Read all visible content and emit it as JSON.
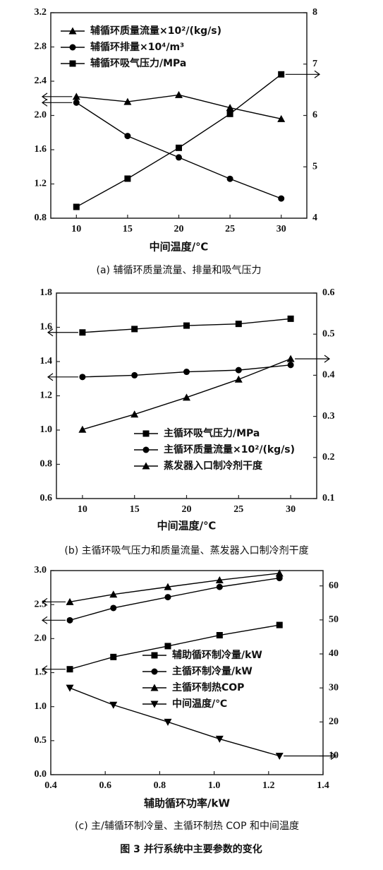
{
  "chart_data": [
    {
      "type": "line",
      "caption": "(a) 辅循环质量流量、排量和吸气压力",
      "xlabel": "中间温度/℃",
      "x": [
        10,
        15,
        20,
        25,
        30
      ],
      "xlim": [
        7.5,
        32.5
      ],
      "xticks": [
        10,
        15,
        20,
        25,
        30
      ],
      "ylim": [
        0.8,
        3.2
      ],
      "yticks": [
        0.8,
        1.2,
        1.6,
        {
          "value": 2,
          "label": "2.0"
        },
        2.4,
        2.8,
        3.2
      ],
      "y2lim": [
        4,
        8
      ],
      "y2ticks": [
        4,
        5,
        6,
        7,
        8
      ],
      "legend": "top-left",
      "series": [
        {
          "name": "辅循环质量流量×10²/(kg/s)",
          "color": "#000000",
          "marker": "triangle",
          "axis": "y",
          "values": [
            2.22,
            2.16,
            2.24,
            2.09,
            1.96
          ]
        },
        {
          "name": "辅循环排量×10⁴/m³",
          "color": "#000000",
          "marker": "circle",
          "axis": "y",
          "values": [
            2.15,
            1.76,
            1.51,
            1.26,
            1.03
          ]
        },
        {
          "name": "辅循环吸气压力/MPa",
          "color": "#000000",
          "marker": "square",
          "axis": "y2",
          "values": [
            4.22,
            4.77,
            5.37,
            6.03,
            6.8
          ]
        }
      ]
    },
    {
      "type": "line",
      "caption": "(b) 主循环吸气压力和质量流量、蒸发器入口制冷剂干度",
      "xlabel": "中间温度/℃",
      "x": [
        10,
        15,
        20,
        25,
        30
      ],
      "xlim": [
        7.5,
        32.5
      ],
      "xticks": [
        10,
        15,
        20,
        25,
        30
      ],
      "ylim": [
        0.6,
        1.8
      ],
      "yticks": [
        0.6,
        0.8,
        {
          "value": 1,
          "label": "1.0"
        },
        1.2,
        1.4,
        1.6,
        1.8
      ],
      "y2lim": [
        0.1,
        0.6
      ],
      "y2ticks": [
        0.1,
        0.2,
        0.3,
        0.4,
        0.5,
        0.6
      ],
      "legend": "bottom-right",
      "series": [
        {
          "name": "主循环吸气压力/MPa",
          "color": "#000000",
          "marker": "square",
          "axis": "y",
          "values": [
            1.57,
            1.59,
            1.61,
            1.62,
            1.65
          ]
        },
        {
          "name": "主循环质量流量×10²/(kg/s)",
          "color": "#000000",
          "marker": "circle",
          "axis": "y",
          "values": [
            1.31,
            1.32,
            1.34,
            1.35,
            1.38
          ]
        },
        {
          "name": "蒸发器入口制冷剂干度",
          "color": "#000000",
          "marker": "triangle",
          "axis": "y2",
          "values": [
            0.268,
            0.305,
            0.346,
            0.39,
            0.44
          ]
        }
      ]
    },
    {
      "type": "line",
      "caption": "(c) 主/辅循环制冷量、主循环制热 COP 和中间温度",
      "xlabel": "辅助循环功率/kW",
      "x": [
        0.47,
        0.63,
        0.83,
        1.02,
        1.24
      ],
      "xlim": [
        0.4,
        1.4
      ],
      "xticks": [
        0.4,
        0.6,
        0.8,
        {
          "value": 1,
          "label": "1.0"
        },
        1.2,
        1.4
      ],
      "ylim": [
        0,
        3
      ],
      "yticks": [
        {
          "value": 0,
          "label": "0.0"
        },
        0.5,
        {
          "value": 1,
          "label": "1.0"
        },
        1.5,
        {
          "value": 2,
          "label": "2.0"
        },
        2.5,
        {
          "value": 3,
          "label": "3.0"
        }
      ],
      "y2lim": [
        4.5,
        64.5
      ],
      "y2ticks": [
        10,
        20,
        30,
        40,
        50,
        60
      ],
      "legend": "center-right",
      "series": [
        {
          "name": "辅助循环制冷量/kW",
          "color": "#000000",
          "marker": "square",
          "axis": "y",
          "values": [
            1.55,
            1.73,
            1.89,
            2.05,
            2.2
          ]
        },
        {
          "name": "主循环制冷量/kW",
          "color": "#000000",
          "marker": "circle",
          "axis": "y",
          "values": [
            2.27,
            2.45,
            2.61,
            2.76,
            2.89
          ]
        },
        {
          "name": "主循环制热COP",
          "color": "#000000",
          "marker": "triangle",
          "axis": "y",
          "values": [
            2.54,
            2.65,
            2.76,
            2.86,
            2.96
          ]
        },
        {
          "name": "中间温度/℃",
          "color": "#000000",
          "marker": "triangle-down",
          "axis": "y2",
          "values": [
            30,
            25,
            20,
            15,
            10
          ]
        }
      ]
    }
  ],
  "figure_title": "图 3 并行系统中主要参数的变化"
}
